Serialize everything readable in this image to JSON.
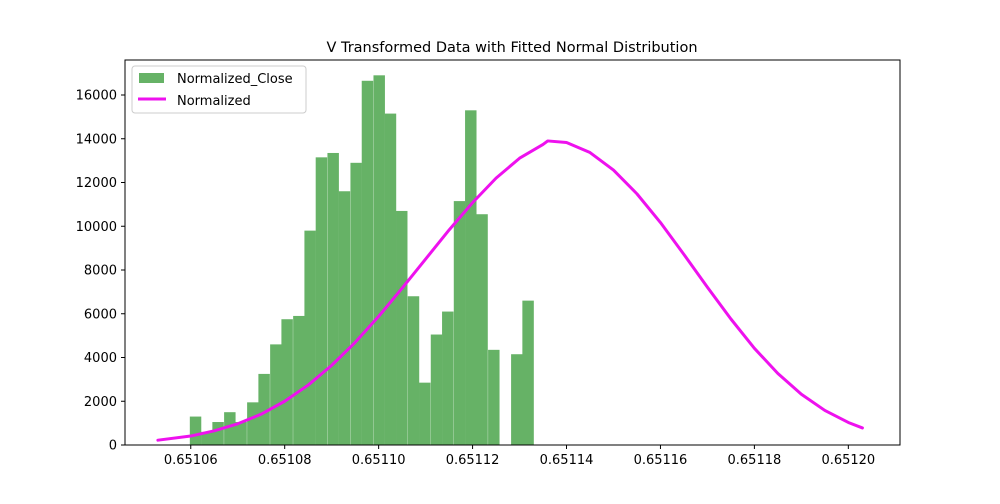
{
  "chart_data": {
    "type": "bar",
    "title": "V Transformed Data with Fitted Normal Distribution",
    "xlabel": "",
    "ylabel": "",
    "xlim": [
      0.651046,
      0.651211
    ],
    "ylim": [
      0,
      17600
    ],
    "grid": false,
    "legend_position": "top-left",
    "x_ticks": [
      0.65106,
      0.65108,
      0.6511,
      0.65112,
      0.65114,
      0.65116,
      0.65118,
      0.6512
    ],
    "x_tick_labels": [
      "0.65106",
      "0.65108",
      "0.65110",
      "0.65112",
      "0.65114",
      "0.65116",
      "0.65118",
      "0.65120"
    ],
    "y_ticks": [
      0,
      2000,
      4000,
      6000,
      8000,
      10000,
      12000,
      14000,
      16000
    ],
    "y_tick_labels": [
      "0",
      "2000",
      "4000",
      "6000",
      "8000",
      "10000",
      "12000",
      "14000",
      "16000"
    ],
    "bin_width": 2.44e-06,
    "series": [
      {
        "name": "Normalized_Close",
        "kind": "histogram",
        "color": "#66b266",
        "bins": [
          {
            "left": 0.6510598,
            "height": 1300
          },
          {
            "left": 0.6510622,
            "height": 600
          },
          {
            "left": 0.6510646,
            "height": 1050
          },
          {
            "left": 0.6510671,
            "height": 1500
          },
          {
            "left": 0.6510695,
            "height": 1050
          },
          {
            "left": 0.651072,
            "height": 1950
          },
          {
            "left": 0.6510744,
            "height": 3250
          },
          {
            "left": 0.6510769,
            "height": 4600
          },
          {
            "left": 0.6510793,
            "height": 5750
          },
          {
            "left": 0.6510818,
            "height": 5900
          },
          {
            "left": 0.6510842,
            "height": 9800
          },
          {
            "left": 0.6510866,
            "height": 13150
          },
          {
            "left": 0.6510891,
            "height": 13350
          },
          {
            "left": 0.6510915,
            "height": 11600
          },
          {
            "left": 0.651094,
            "height": 12900
          },
          {
            "left": 0.6510964,
            "height": 16650
          },
          {
            "left": 0.6510989,
            "height": 16900
          },
          {
            "left": 0.6511013,
            "height": 15150
          },
          {
            "left": 0.6511037,
            "height": 10700
          },
          {
            "left": 0.6511062,
            "height": 6800
          },
          {
            "left": 0.6511086,
            "height": 2850
          },
          {
            "left": 0.6511111,
            "height": 5050
          },
          {
            "left": 0.6511135,
            "height": 6100
          },
          {
            "left": 0.651116,
            "height": 11150
          },
          {
            "left": 0.6511184,
            "height": 15300
          },
          {
            "left": 0.6511208,
            "height": 10550
          },
          {
            "left": 0.6511233,
            "height": 4350
          },
          {
            "left": 0.6511257,
            "height": 0
          },
          {
            "left": 0.6511282,
            "height": 4150
          },
          {
            "left": 0.6511306,
            "height": 6600
          }
        ]
      },
      {
        "name": "Normalized",
        "kind": "line",
        "color": "#ee11ee",
        "x": [
          0.651053,
          0.65106,
          0.651065,
          0.65107,
          0.651075,
          0.65108,
          0.651085,
          0.65109,
          0.651095,
          0.6511,
          0.651105,
          0.65111,
          0.651115,
          0.65112,
          0.651125,
          0.65113,
          0.651135,
          0.651136,
          0.65114,
          0.651145,
          0.65115,
          0.651155,
          0.65116,
          0.651165,
          0.65117,
          0.651175,
          0.65118,
          0.651185,
          0.65119,
          0.651195,
          0.6512,
          0.651203
        ],
        "y": [
          220,
          410,
          650,
          970,
          1410,
          2000,
          2740,
          3640,
          4690,
          5880,
          7170,
          8500,
          9830,
          11080,
          12200,
          13110,
          13740,
          13900,
          13830,
          13370,
          12570,
          11480,
          10170,
          8710,
          7210,
          5760,
          4420,
          3270,
          2320,
          1580,
          1030,
          780
        ]
      }
    ]
  }
}
